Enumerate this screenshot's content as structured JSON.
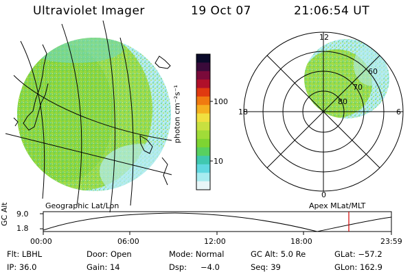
{
  "header": {
    "instrument": "Ultraviolet Imager",
    "date": "19 Oct 07",
    "time": "21:06:54 UT"
  },
  "colorbar": {
    "unit_label": "photon cm⁻²s⁻¹",
    "ticks": [
      "100",
      "10"
    ],
    "colors": [
      "#0a0a2a",
      "#3a0a3a",
      "#7a0a3a",
      "#b0102a",
      "#e03a10",
      "#f07a10",
      "#f5b020",
      "#f0e040",
      "#c8e040",
      "#a0dc38",
      "#7ed432",
      "#58d060",
      "#40c8b0",
      "#60d8e0",
      "#a8ecf0",
      "#e8f6f8"
    ]
  },
  "geographic_panel": {
    "label": "Geographic Lat/Lon",
    "disk_color": "#9ada4a",
    "edge_color": "#b8eef0"
  },
  "apex_panel": {
    "label": "Apex MLat/MLT",
    "mlt_labels": {
      "top": "12",
      "left": "18",
      "right": "6",
      "bottom": "0"
    },
    "lat_labels": [
      "60",
      "70",
      "80"
    ]
  },
  "altitude_plot": {
    "ylabel": "GC Alt",
    "yticks": [
      "9.0",
      "1.8"
    ],
    "xticks": [
      "00:00",
      "06:00",
      "12:00",
      "18:00",
      "23:59"
    ],
    "current_time_color": "#d00000"
  },
  "info": {
    "row1": {
      "flt": "Flt: LBHL",
      "door": "Door: Open",
      "mode": "Mode: Normal",
      "gc_alt": "GC Alt: 5.0 Re",
      "glat": "GLat: −57.2"
    },
    "row2": {
      "ip": "IP: 36.0",
      "gain": "Gain: 14",
      "dsp_label": "Dsp:",
      "dsp_value": "−4.0",
      "seq": "Seq: 39",
      "glon": "GLon: 162.9"
    }
  }
}
